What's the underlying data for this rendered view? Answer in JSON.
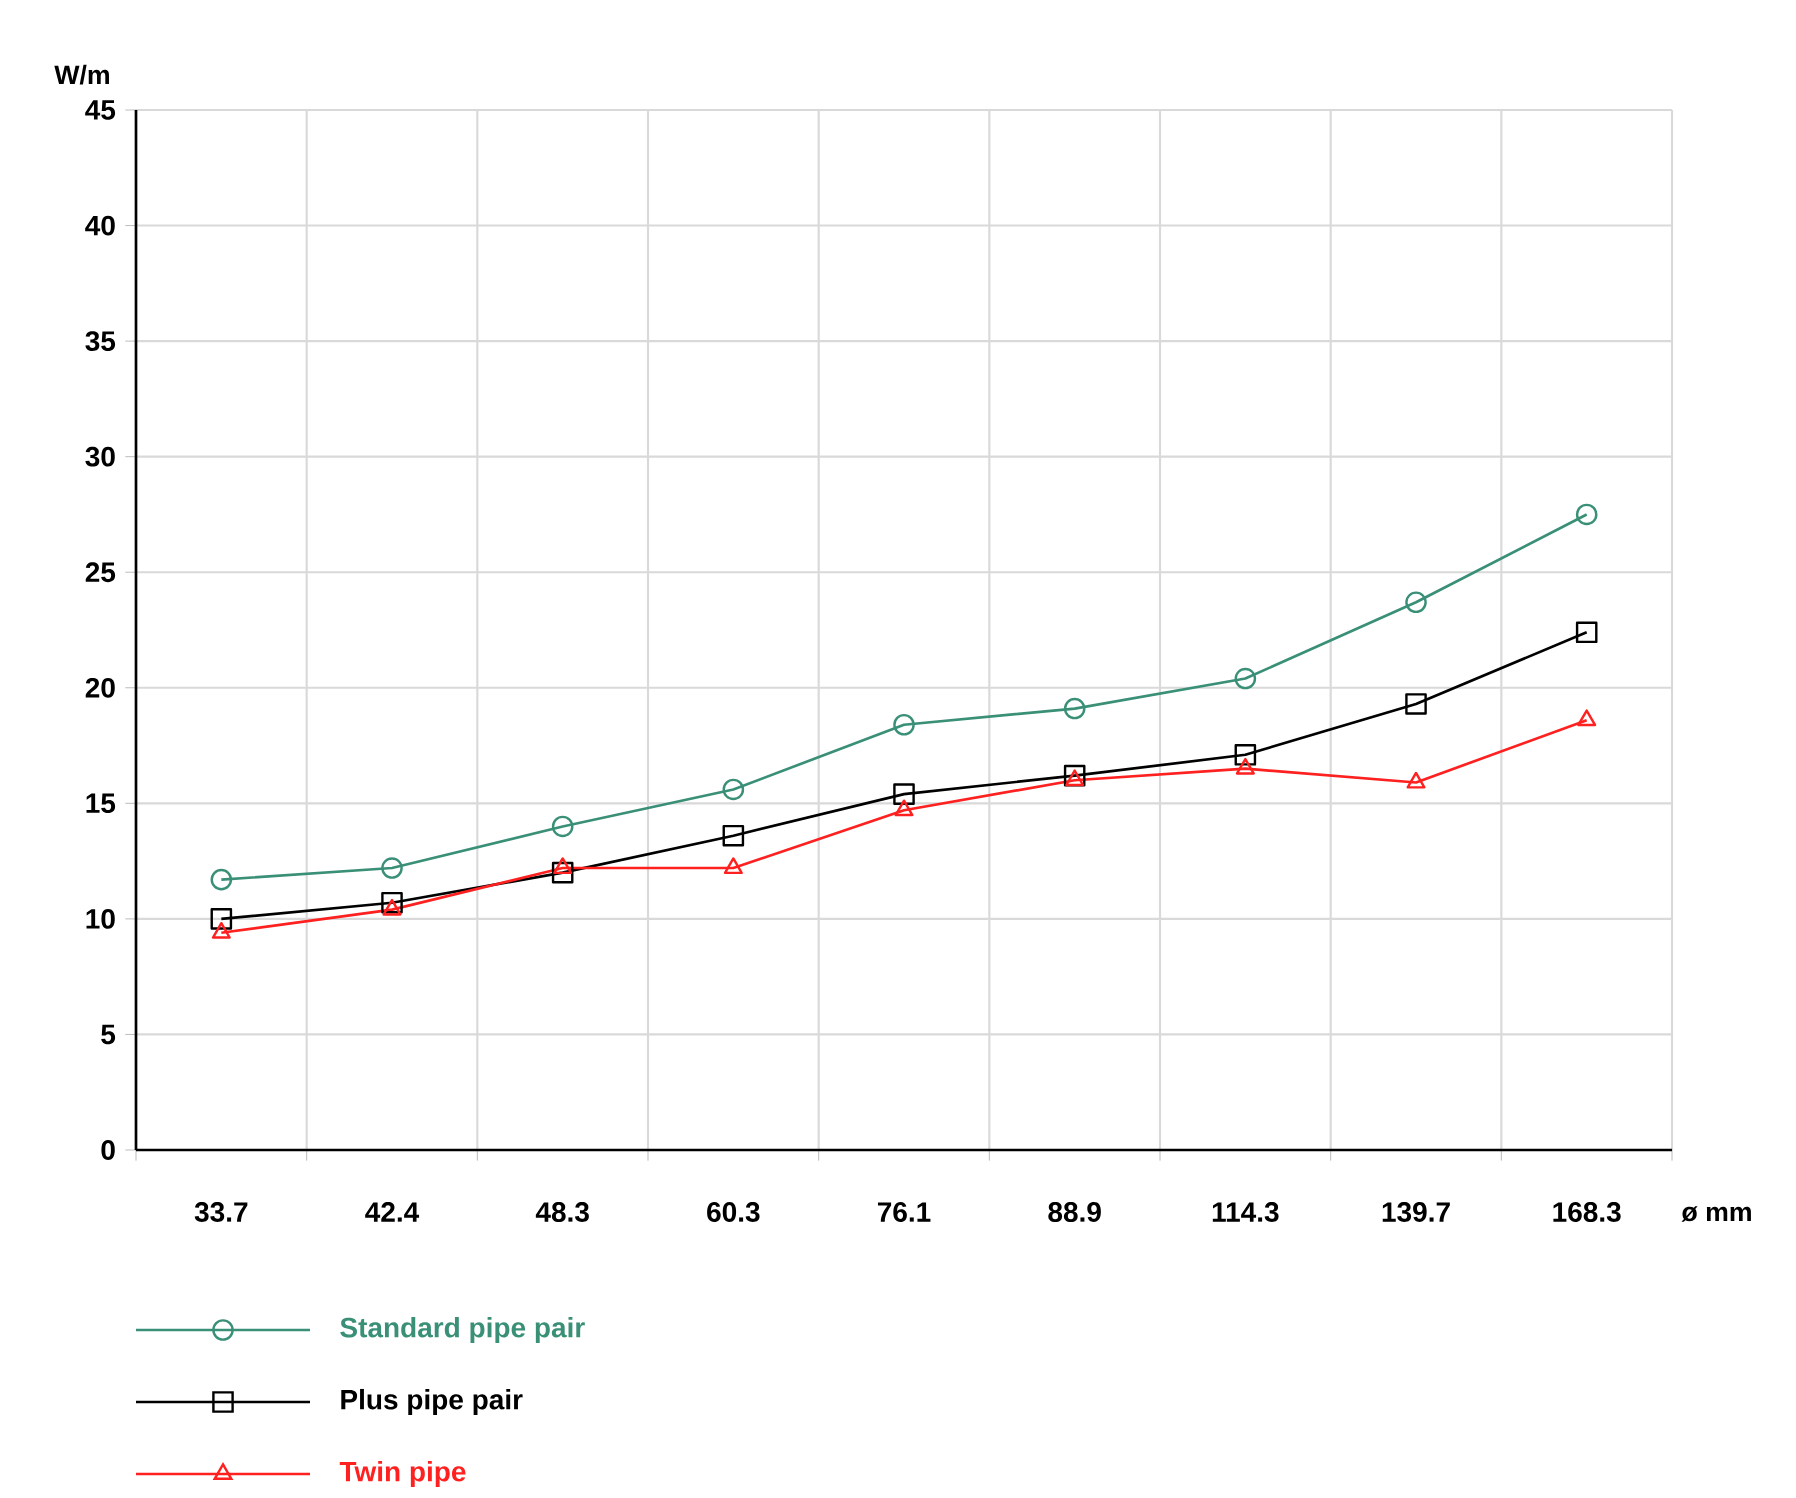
{
  "chart_data": {
    "type": "line",
    "xlabel": "ø mm",
    "ylabel": "W/m",
    "categories": [
      "33.7",
      "42.4",
      "48.3",
      "60.3",
      "76.1",
      "88.9",
      "114.3",
      "139.7",
      "168.3"
    ],
    "ylim": [
      0,
      45
    ],
    "yticks": [
      0,
      5,
      10,
      15,
      20,
      25,
      30,
      35,
      40,
      45
    ],
    "grid": true,
    "legend": "bottom",
    "line_style": "solid",
    "series": [
      {
        "name": "Standard pipe pair",
        "color": "#3a8f77",
        "marker": "circle",
        "values": [
          11.7,
          12.2,
          14.0,
          15.6,
          18.4,
          19.1,
          20.4,
          23.7,
          27.5
        ]
      },
      {
        "name": "Plus pipe pair",
        "color": "#000000",
        "marker": "square",
        "values": [
          10.0,
          10.7,
          12.0,
          13.6,
          15.4,
          16.2,
          17.1,
          19.3,
          22.4
        ]
      },
      {
        "name": "Twin pipe",
        "color": "#ff2020",
        "marker": "triangle",
        "values": [
          9.4,
          10.4,
          12.2,
          12.2,
          14.7,
          16.0,
          16.5,
          15.9,
          18.6
        ]
      }
    ]
  }
}
